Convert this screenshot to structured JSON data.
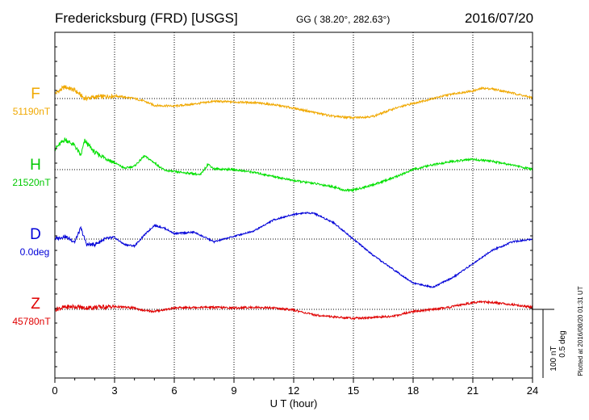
{
  "header": {
    "title": "Fredericksburg (FRD)  [USGS]",
    "coords": "GG ( 38.20°, 282.63°)",
    "date": "2016/07/20",
    "footer": "Plotted at 2016/08/20 01:31  UT"
  },
  "scale": {
    "nt": "100 nT",
    "deg": "0.5 deg"
  },
  "colors": {
    "F": "#f0a800",
    "H": "#00e000",
    "D": "#0000d8",
    "Z": "#e00000",
    "grid": "#000000"
  },
  "chart_data": {
    "type": "line",
    "xlabel": "U T (hour)",
    "ylabel": "",
    "xlim": [
      0,
      24
    ],
    "xticks": [
      0,
      3,
      6,
      9,
      12,
      15,
      18,
      21,
      24
    ],
    "grid": true,
    "series": [
      {
        "name": "F",
        "baseline_label": "51190nT",
        "unit": "nT",
        "x": [
          0,
          0.5,
          1,
          1.5,
          2,
          3,
          4,
          4.5,
          5,
          6,
          7,
          8,
          9,
          10,
          11,
          12,
          13,
          14,
          14.5,
          15,
          16,
          17,
          18,
          19,
          20,
          21,
          21.5,
          22,
          23,
          24
        ],
        "values": [
          7,
          17,
          12,
          0,
          2,
          4,
          0,
          -4,
          -10,
          -11,
          -8,
          -4,
          -5,
          -6,
          -9,
          -14,
          -20,
          -26,
          -27,
          -28,
          -26,
          -15,
          -7,
          0,
          7,
          11,
          15,
          14,
          8,
          1
        ]
      },
      {
        "name": "H",
        "baseline_label": "21520nT",
        "unit": "nT",
        "x": [
          0,
          0.5,
          1,
          1.3,
          1.5,
          2,
          3,
          3.5,
          4,
          4.5,
          5,
          5.5,
          6,
          7,
          7.3,
          7.7,
          8,
          9,
          10,
          11,
          12,
          13,
          14,
          14.5,
          15,
          16,
          17,
          18,
          19,
          20,
          21,
          22,
          23,
          24
        ],
        "values": [
          30,
          44,
          35,
          20,
          42,
          25,
          10,
          2,
          5,
          20,
          10,
          -1,
          -3,
          -6,
          -8,
          8,
          1,
          0,
          -4,
          -10,
          -16,
          -20,
          -25,
          -30,
          -30,
          -22,
          -12,
          0,
          7,
          12,
          15,
          12,
          7,
          0
        ]
      },
      {
        "name": "D",
        "baseline_label": "0.0deg",
        "unit": "deg",
        "x": [
          0,
          0.5,
          1,
          1.3,
          1.6,
          2,
          2.5,
          3,
          3.5,
          4,
          4.5,
          5,
          5.5,
          6,
          7,
          8,
          9,
          10,
          11,
          12,
          12.5,
          13,
          14,
          15,
          16,
          17,
          18,
          19,
          20,
          21,
          22,
          23,
          24
        ],
        "values": [
          0.0,
          0.02,
          -0.02,
          0.08,
          -0.04,
          -0.04,
          0.0,
          0.01,
          -0.04,
          -0.05,
          0.03,
          0.1,
          0.08,
          0.04,
          0.05,
          -0.02,
          0.02,
          0.06,
          0.14,
          0.18,
          0.19,
          0.19,
          0.12,
          0.0,
          -0.12,
          -0.22,
          -0.32,
          -0.35,
          -0.28,
          -0.18,
          -0.08,
          -0.02,
          0.0
        ]
      },
      {
        "name": "Z",
        "baseline_label": "45780nT",
        "unit": "nT",
        "x": [
          0,
          0.5,
          1,
          1.5,
          2,
          3,
          4,
          4.5,
          5,
          6,
          7,
          8,
          9,
          10,
          11,
          12,
          13,
          14,
          15,
          16,
          17,
          18,
          19,
          20,
          21,
          21.5,
          22,
          23,
          24
        ],
        "values": [
          0,
          3,
          4,
          2,
          3,
          4,
          2,
          -2,
          -3,
          2,
          3,
          3,
          2,
          3,
          2,
          -1,
          -8,
          -11,
          -13,
          -12,
          -10,
          -3,
          0,
          4,
          10,
          11,
          10,
          7,
          3
        ]
      }
    ],
    "stack_order": [
      "F",
      "H",
      "D",
      "Z"
    ]
  }
}
